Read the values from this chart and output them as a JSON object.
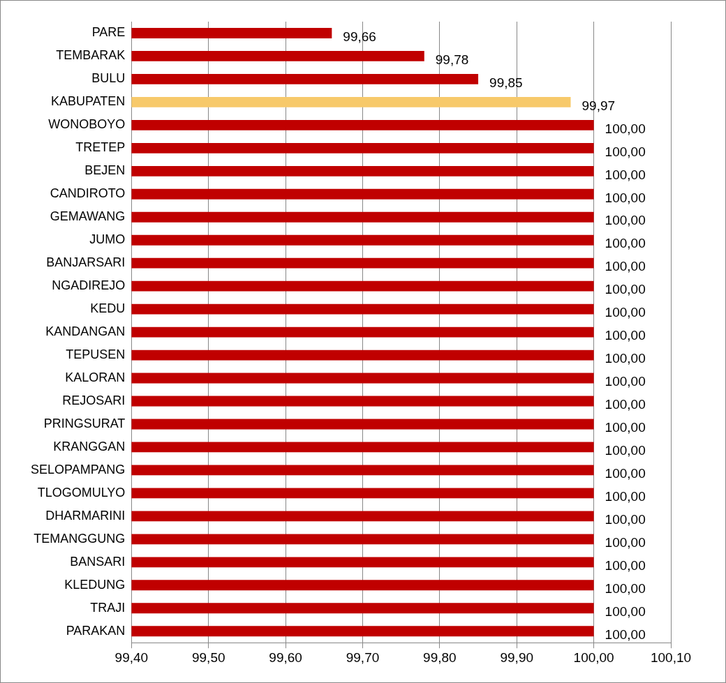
{
  "chart_data": {
    "type": "bar",
    "orientation": "horizontal",
    "categories": [
      "PARE",
      "TEMBARAK",
      "BULU",
      "KABUPATEN",
      "WONOBOYO",
      "TRETEP",
      "BEJEN",
      "CANDIROTO",
      "GEMAWANG",
      "JUMO",
      "BANJARSARI",
      "NGADIREJO",
      "KEDU",
      "KANDANGAN",
      "TEPUSEN",
      "KALORAN",
      "REJOSARI",
      "PRINGSURAT",
      "KRANGGAN",
      "SELOPAMPANG",
      "TLOGOMULYO",
      "DHARMARINI",
      "TEMANGGUNG",
      "BANSARI",
      "KLEDUNG",
      "TRAJI",
      "PARAKAN"
    ],
    "values": [
      99.66,
      99.78,
      99.85,
      99.97,
      100,
      100,
      100,
      100,
      100,
      100,
      100,
      100,
      100,
      100,
      100,
      100,
      100,
      100,
      100,
      100,
      100,
      100,
      100,
      100,
      100,
      100,
      100
    ],
    "value_labels": [
      "99,66",
      "99,78",
      "99,85",
      "99,97",
      "100,00",
      "100,00",
      "100,00",
      "100,00",
      "100,00",
      "100,00",
      "100,00",
      "100,00",
      "100,00",
      "100,00",
      "100,00",
      "100,00",
      "100,00",
      "100,00",
      "100,00",
      "100,00",
      "100,00",
      "100,00",
      "100,00",
      "100,00",
      "100,00",
      "100,00",
      "100,00"
    ],
    "colors": [
      "#c00000",
      "#c00000",
      "#c00000",
      "#f7c96a",
      "#c00000",
      "#c00000",
      "#c00000",
      "#c00000",
      "#c00000",
      "#c00000",
      "#c00000",
      "#c00000",
      "#c00000",
      "#c00000",
      "#c00000",
      "#c00000",
      "#c00000",
      "#c00000",
      "#c00000",
      "#c00000",
      "#c00000",
      "#c00000",
      "#c00000",
      "#c00000",
      "#c00000",
      "#c00000",
      "#c00000"
    ],
    "xlim": [
      99.4,
      100.1
    ],
    "xticks": [
      {
        "value": 99.4,
        "label": "99,40"
      },
      {
        "value": 99.5,
        "label": "99,50"
      },
      {
        "value": 99.6,
        "label": "99,60"
      },
      {
        "value": 99.7,
        "label": "99,70"
      },
      {
        "value": 99.8,
        "label": "99,80"
      },
      {
        "value": 99.9,
        "label": "99,90"
      },
      {
        "value": 100,
        "label": "100,00"
      },
      {
        "value": 100.1,
        "label": "100,10"
      }
    ],
    "grid": "x",
    "legend": false
  }
}
